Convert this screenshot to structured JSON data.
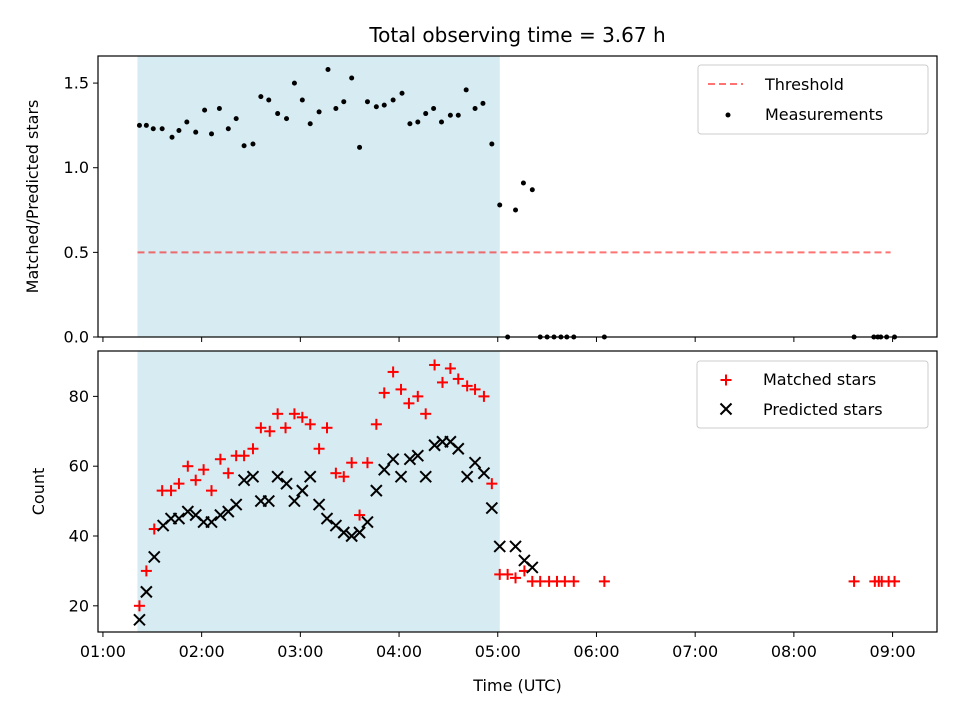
{
  "figure": {
    "title": "Total observing time = 3.67 h",
    "xlabel": "Time (UTC)"
  },
  "chart_data": [
    {
      "type": "scatter",
      "panel": "top",
      "title": "Total observing time = 3.67 h",
      "xlabel": "",
      "ylabel": "Matched/Predicted stars",
      "x_unit": "hours (UTC)",
      "xlim": [
        0.95,
        9.45
      ],
      "ylim": [
        0,
        1.66
      ],
      "yticks": [
        0.0,
        0.5,
        1.0,
        1.5
      ],
      "ytick_labels": [
        "0.0",
        "0.5",
        "1.0",
        "1.5"
      ],
      "xticks": [
        1,
        2,
        3,
        4,
        5,
        6,
        7,
        8,
        9
      ],
      "xtick_labels": [
        "",
        "",
        "",
        "",
        "",
        "",
        "",
        "",
        ""
      ],
      "grid": false,
      "legend_position": "top-right",
      "shaded_interval": {
        "x": [
          1.35,
          5.02
        ],
        "color": "#add8e6",
        "opacity": 0.5
      },
      "threshold": {
        "name": "Threshold",
        "x": [
          1.35,
          8.98
        ],
        "y": 0.5,
        "color": "#ff0000",
        "style": "dashed",
        "opacity": 0.55
      },
      "series": [
        {
          "name": "Measurements",
          "marker": "dot",
          "color": "#000000",
          "points": [
            [
              1.37,
              1.25
            ],
            [
              1.44,
              1.25
            ],
            [
              1.51,
              1.23
            ],
            [
              1.6,
              1.23
            ],
            [
              1.7,
              1.18
            ],
            [
              1.77,
              1.22
            ],
            [
              1.85,
              1.27
            ],
            [
              1.94,
              1.21
            ],
            [
              2.03,
              1.34
            ],
            [
              2.1,
              1.2
            ],
            [
              2.18,
              1.35
            ],
            [
              2.27,
              1.23
            ],
            [
              2.35,
              1.29
            ],
            [
              2.43,
              1.13
            ],
            [
              2.52,
              1.14
            ],
            [
              2.6,
              1.42
            ],
            [
              2.68,
              1.4
            ],
            [
              2.77,
              1.32
            ],
            [
              2.86,
              1.29
            ],
            [
              2.94,
              1.5
            ],
            [
              3.02,
              1.4
            ],
            [
              3.1,
              1.26
            ],
            [
              3.19,
              1.33
            ],
            [
              3.28,
              1.58
            ],
            [
              3.36,
              1.35
            ],
            [
              3.44,
              1.39
            ],
            [
              3.52,
              1.53
            ],
            [
              3.6,
              1.12
            ],
            [
              3.68,
              1.39
            ],
            [
              3.77,
              1.36
            ],
            [
              3.85,
              1.37
            ],
            [
              3.94,
              1.4
            ],
            [
              4.03,
              1.44
            ],
            [
              4.11,
              1.26
            ],
            [
              4.19,
              1.27
            ],
            [
              4.27,
              1.32
            ],
            [
              4.35,
              1.35
            ],
            [
              4.43,
              1.27
            ],
            [
              4.52,
              1.31
            ],
            [
              4.6,
              1.31
            ],
            [
              4.68,
              1.46
            ],
            [
              4.77,
              1.35
            ],
            [
              4.85,
              1.38
            ],
            [
              4.94,
              1.14
            ],
            [
              5.02,
              0.78
            ],
            [
              5.1,
              0.0
            ],
            [
              5.18,
              0.75
            ],
            [
              5.26,
              0.91
            ],
            [
              5.35,
              0.87
            ],
            [
              5.43,
              0.0
            ],
            [
              5.5,
              0.0
            ],
            [
              5.57,
              0.0
            ],
            [
              5.64,
              0.0
            ],
            [
              5.7,
              0.0
            ],
            [
              5.77,
              0.0
            ],
            [
              6.08,
              0.0
            ],
            [
              8.61,
              0.0
            ],
            [
              8.81,
              0.0
            ],
            [
              8.85,
              0.0
            ],
            [
              8.88,
              0.0
            ],
            [
              8.94,
              0.0
            ],
            [
              9.02,
              0.0
            ]
          ]
        }
      ]
    },
    {
      "type": "scatter",
      "panel": "bottom",
      "xlabel": "Time (UTC)",
      "ylabel": "Count",
      "x_unit": "hours (UTC)",
      "xlim": [
        0.95,
        9.45
      ],
      "ylim": [
        12.5,
        93
      ],
      "yticks": [
        20,
        40,
        60,
        80
      ],
      "ytick_labels": [
        "20",
        "40",
        "60",
        "80"
      ],
      "xticks": [
        1,
        2,
        3,
        4,
        5,
        6,
        7,
        8,
        9
      ],
      "xtick_labels": [
        "01:00",
        "02:00",
        "03:00",
        "04:00",
        "05:00",
        "06:00",
        "07:00",
        "08:00",
        "09:00"
      ],
      "grid": false,
      "legend_position": "top-right",
      "shaded_interval": {
        "x": [
          1.35,
          5.02
        ],
        "color": "#add8e6",
        "opacity": 0.5
      },
      "series": [
        {
          "name": "Matched stars",
          "marker": "plus",
          "color": "#ff0000",
          "points": [
            [
              1.37,
              20
            ],
            [
              1.44,
              30
            ],
            [
              1.52,
              42
            ],
            [
              1.6,
              53
            ],
            [
              1.69,
              53
            ],
            [
              1.77,
              55
            ],
            [
              1.86,
              60
            ],
            [
              1.94,
              56
            ],
            [
              2.02,
              59
            ],
            [
              2.1,
              53
            ],
            [
              2.19,
              62
            ],
            [
              2.27,
              58
            ],
            [
              2.35,
              63
            ],
            [
              2.43,
              63
            ],
            [
              2.52,
              65
            ],
            [
              2.6,
              71
            ],
            [
              2.69,
              70
            ],
            [
              2.77,
              75
            ],
            [
              2.85,
              71
            ],
            [
              2.94,
              75
            ],
            [
              3.02,
              74
            ],
            [
              3.1,
              72
            ],
            [
              3.19,
              65
            ],
            [
              3.27,
              71
            ],
            [
              3.36,
              58
            ],
            [
              3.44,
              57
            ],
            [
              3.52,
              61
            ],
            [
              3.6,
              46
            ],
            [
              3.68,
              61
            ],
            [
              3.77,
              72
            ],
            [
              3.85,
              81
            ],
            [
              3.94,
              87
            ],
            [
              4.02,
              82
            ],
            [
              4.1,
              78
            ],
            [
              4.19,
              80
            ],
            [
              4.27,
              75
            ],
            [
              4.36,
              89
            ],
            [
              4.44,
              84
            ],
            [
              4.52,
              88
            ],
            [
              4.6,
              85
            ],
            [
              4.69,
              83
            ],
            [
              4.77,
              82
            ],
            [
              4.86,
              80
            ],
            [
              4.94,
              55
            ],
            [
              5.02,
              29
            ],
            [
              5.1,
              29
            ],
            [
              5.18,
              28
            ],
            [
              5.27,
              30
            ],
            [
              5.35,
              27
            ],
            [
              5.43,
              27
            ],
            [
              5.52,
              27
            ],
            [
              5.6,
              27
            ],
            [
              5.68,
              27
            ],
            [
              5.77,
              27
            ],
            [
              6.08,
              27
            ],
            [
              8.61,
              27
            ],
            [
              8.82,
              27
            ],
            [
              8.86,
              27
            ],
            [
              8.89,
              27
            ],
            [
              8.96,
              27
            ],
            [
              9.02,
              27
            ]
          ]
        },
        {
          "name": "Predicted stars",
          "marker": "x",
          "color": "#000000",
          "points": [
            [
              1.37,
              16
            ],
            [
              1.44,
              24
            ],
            [
              1.52,
              34
            ],
            [
              1.61,
              43
            ],
            [
              1.69,
              45
            ],
            [
              1.77,
              45
            ],
            [
              1.86,
              47
            ],
            [
              1.94,
              46
            ],
            [
              2.02,
              44
            ],
            [
              2.1,
              44
            ],
            [
              2.19,
              46
            ],
            [
              2.27,
              47
            ],
            [
              2.35,
              49
            ],
            [
              2.43,
              56
            ],
            [
              2.52,
              57
            ],
            [
              2.6,
              50
            ],
            [
              2.68,
              50
            ],
            [
              2.77,
              57
            ],
            [
              2.86,
              55
            ],
            [
              2.94,
              50
            ],
            [
              3.02,
              53
            ],
            [
              3.1,
              57
            ],
            [
              3.19,
              49
            ],
            [
              3.27,
              45
            ],
            [
              3.36,
              43
            ],
            [
              3.44,
              41
            ],
            [
              3.52,
              40
            ],
            [
              3.6,
              41
            ],
            [
              3.68,
              44
            ],
            [
              3.77,
              53
            ],
            [
              3.85,
              59
            ],
            [
              3.94,
              62
            ],
            [
              4.02,
              57
            ],
            [
              4.11,
              62
            ],
            [
              4.19,
              63
            ],
            [
              4.27,
              57
            ],
            [
              4.36,
              66
            ],
            [
              4.44,
              67
            ],
            [
              4.52,
              67
            ],
            [
              4.6,
              65
            ],
            [
              4.69,
              57
            ],
            [
              4.77,
              61
            ],
            [
              4.86,
              58
            ],
            [
              4.94,
              48
            ],
            [
              5.02,
              37
            ],
            [
              5.18,
              37
            ],
            [
              5.27,
              33
            ],
            [
              5.35,
              31
            ]
          ]
        }
      ]
    }
  ]
}
